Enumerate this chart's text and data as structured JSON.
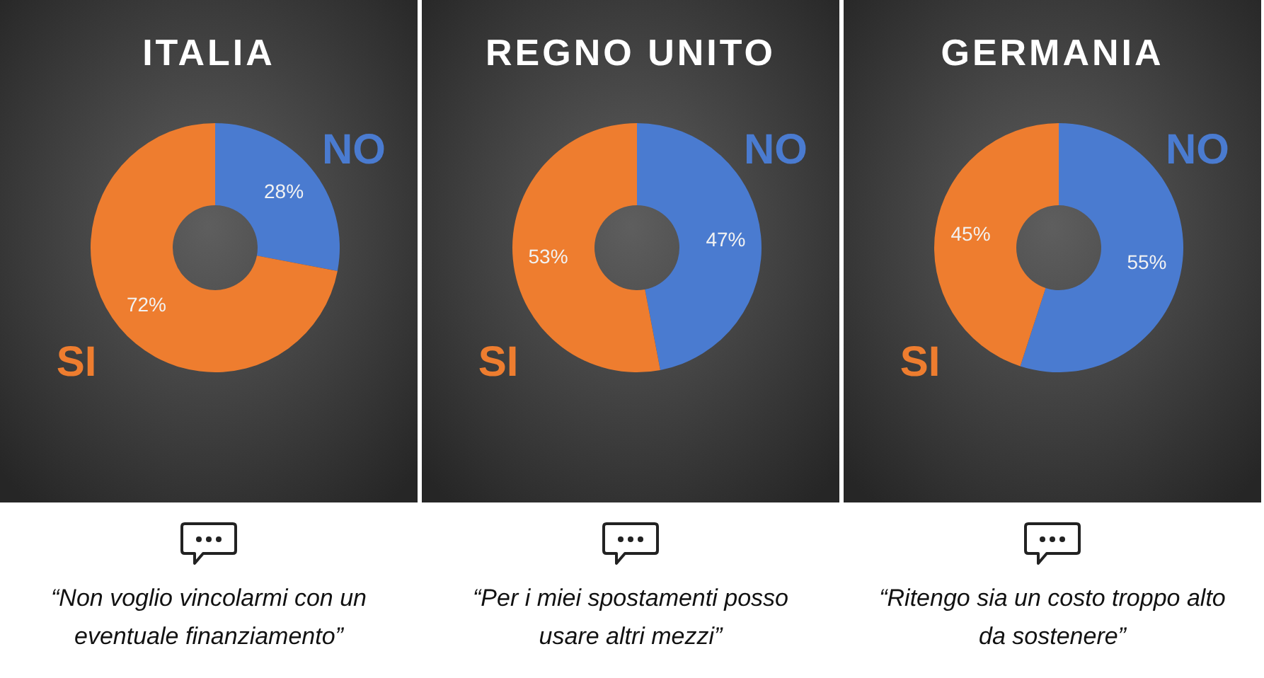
{
  "chart_data": [
    {
      "type": "donut",
      "title": "ITALIA",
      "categories": [
        "NO",
        "SI"
      ],
      "values": [
        28,
        72
      ],
      "value_labels": [
        "28%",
        "72%"
      ],
      "colors": [
        "#4a7bd0",
        "#ee7d2f"
      ],
      "annotations": [
        "“Non voglio vincolarmi con un eventuale finanziamento”"
      ]
    },
    {
      "type": "donut",
      "title": "REGNO UNITO",
      "categories": [
        "NO",
        "SI"
      ],
      "values": [
        47,
        53
      ],
      "value_labels": [
        "47%",
        "53%"
      ],
      "colors": [
        "#4a7bd0",
        "#ee7d2f"
      ],
      "annotations": [
        "“Per i miei spostamenti posso usare altri mezzi”"
      ]
    },
    {
      "type": "donut",
      "title": "GERMANIA",
      "categories": [
        "NO",
        "SI"
      ],
      "values": [
        55,
        45
      ],
      "value_labels": [
        "55%",
        "45%"
      ],
      "colors": [
        "#4a7bd0",
        "#ee7d2f"
      ],
      "annotations": [
        "“Ritengo sia un costo troppo alto da sostenere”"
      ]
    }
  ]
}
